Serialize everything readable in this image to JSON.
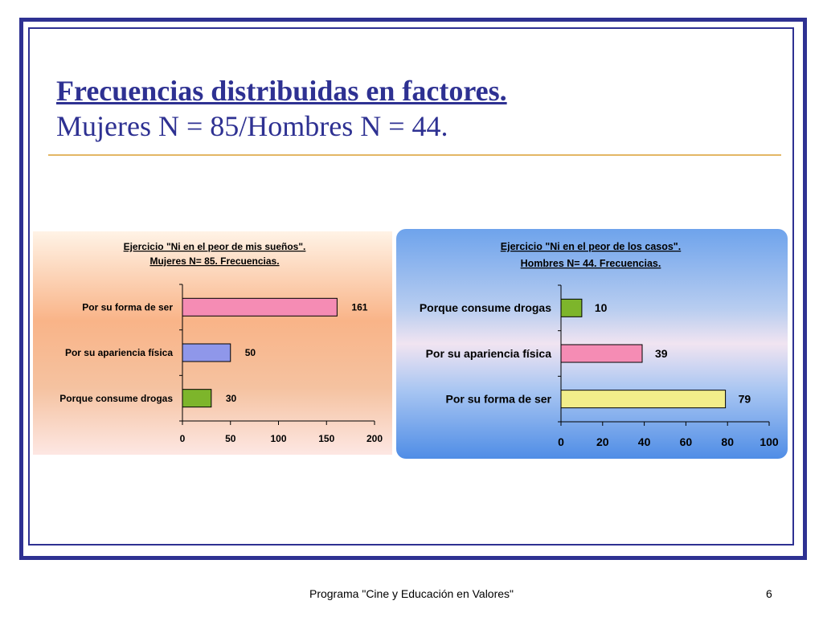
{
  "slide": {
    "title": "Frecuencias distribuidas en factores.",
    "subtitle": "Mujeres N = 85/Hombres N = 44.",
    "footer": "Programa \"Cine y Educación en Valores\"",
    "page_number": "6"
  },
  "colors": {
    "frame": "#2e3192",
    "rule": "#e3b765"
  },
  "chart_data": [
    {
      "type": "bar",
      "orientation": "horizontal",
      "title_line1": "Ejercicio \"Ni en el peor de mis sueños\". ",
      "title_line2": "Mujeres N= 85. Frecuencias.",
      "categories": [
        "Por su forma de ser",
        "Por su apariencia física",
        "Porque consume drogas"
      ],
      "values": [
        161,
        50,
        30
      ],
      "bar_colors": [
        "#f58cb4",
        "#8f97ea",
        "#7db52b"
      ],
      "xlim": [
        0,
        200
      ],
      "xticks": [
        0,
        50,
        100,
        150,
        200
      ]
    },
    {
      "type": "bar",
      "orientation": "horizontal",
      "title_line1": "Ejercicio \"Ni en el peor de los casos\". ",
      "title_line2": "Hombres N= 44. Frecuencias.",
      "categories": [
        "Porque consume drogas",
        "Por su apariencia física",
        "Por su forma de ser"
      ],
      "values": [
        10,
        39,
        79
      ],
      "bar_colors": [
        "#7db52b",
        "#f58cb4",
        "#f2ee8a"
      ],
      "xlim": [
        0,
        100
      ],
      "xticks": [
        0,
        20,
        40,
        60,
        80,
        100
      ]
    }
  ]
}
